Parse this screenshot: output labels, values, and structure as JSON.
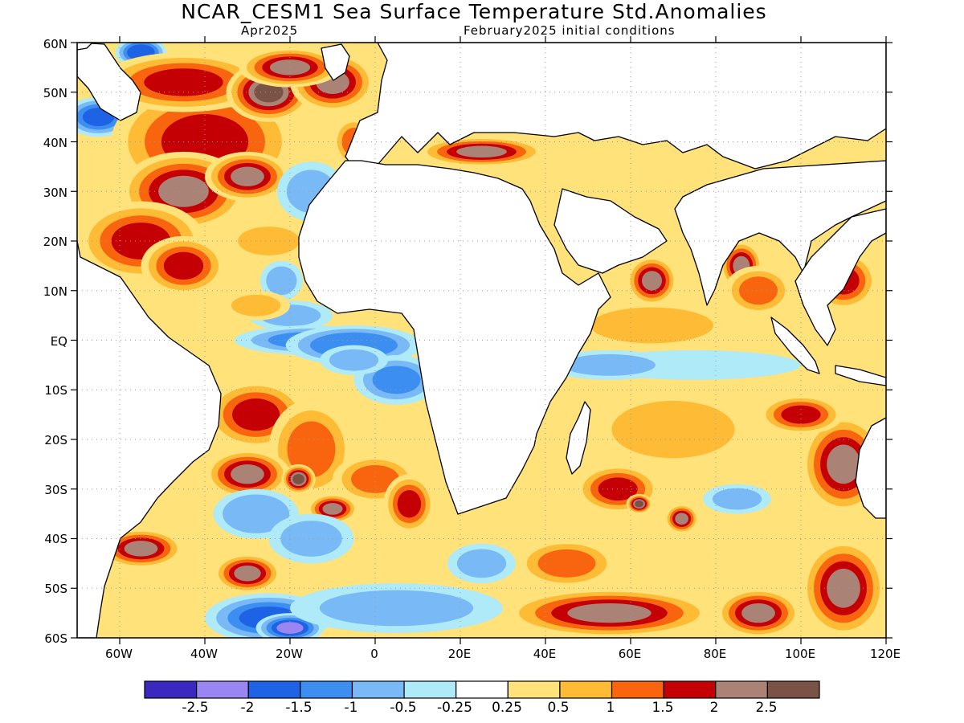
{
  "title": "NCAR_CESM1 Sea Surface Temperature Std.Anomalies",
  "valid_month": "Apr2025",
  "initial_conditions": "February2025 initial conditions",
  "map": {
    "lon_range": [
      -70,
      120
    ],
    "lat_range": [
      -60,
      60
    ],
    "lat_labels": [
      "60N",
      "50N",
      "40N",
      "30N",
      "20N",
      "10N",
      "EQ",
      "10S",
      "20S",
      "30S",
      "40S",
      "50S",
      "60S"
    ],
    "lon_labels": [
      "60W",
      "40W",
      "20W",
      "0",
      "20E",
      "40E",
      "60E",
      "80E",
      "100E",
      "120E"
    ],
    "gridlines": "dotted",
    "land_color": "#ffffff",
    "coastline_color": "#000000"
  },
  "colorbar": {
    "colors": [
      "#3b28be",
      "#9a86f2",
      "#1e62e6",
      "#3c8ff0",
      "#78b9f6",
      "#aeeaf7",
      "#ffffff",
      "#ffe27a",
      "#fdbb36",
      "#f9640f",
      "#c40005",
      "#aa8276",
      "#7a5246"
    ],
    "labels": [
      "-2.5",
      "-2",
      "-1.5",
      "-1",
      "-0.5",
      "-0.25",
      "0.25",
      "0.5",
      "1",
      "1.5",
      "2",
      "2.5"
    ]
  },
  "anomaly_features": [
    {
      "lon": -65,
      "lat": 45,
      "rx": 8,
      "ry": 4,
      "v": -1.8
    },
    {
      "lon": -55,
      "lat": 58,
      "rx": 6,
      "ry": 3,
      "v": -2.0
    },
    {
      "lon": -40,
      "lat": 40,
      "rx": 22,
      "ry": 12,
      "v": 1.7
    },
    {
      "lon": -45,
      "lat": 30,
      "rx": 15,
      "ry": 8,
      "v": 2.0
    },
    {
      "lon": -30,
      "lat": 33,
      "rx": 10,
      "ry": 5,
      "v": 2.3
    },
    {
      "lon": -45,
      "lat": 52,
      "rx": 20,
      "ry": 6,
      "v": 1.8
    },
    {
      "lon": -25,
      "lat": 50,
      "rx": 10,
      "ry": 6,
      "v": 2.5
    },
    {
      "lon": -10,
      "lat": 52,
      "rx": 10,
      "ry": 6,
      "v": 2.2
    },
    {
      "lon": -20,
      "lat": 55,
      "rx": 12,
      "ry": 4,
      "v": 2.0
    },
    {
      "lon": -55,
      "lat": 20,
      "rx": 15,
      "ry": 8,
      "v": 1.8
    },
    {
      "lon": -45,
      "lat": 15,
      "rx": 10,
      "ry": 6,
      "v": 1.6
    },
    {
      "lon": -25,
      "lat": 20,
      "rx": 10,
      "ry": 4,
      "v": 0.6
    },
    {
      "lon": -15,
      "lat": 30,
      "rx": 8,
      "ry": 6,
      "v": -0.6
    },
    {
      "lon": -22,
      "lat": 12,
      "rx": 5,
      "ry": 4,
      "v": -0.8
    },
    {
      "lon": -20,
      "lat": 5,
      "rx": 10,
      "ry": 3,
      "v": -0.8
    },
    {
      "lon": -15,
      "lat": 0,
      "rx": 18,
      "ry": 3,
      "v": -1.4
    },
    {
      "lon": -5,
      "lat": -1,
      "rx": 16,
      "ry": 4,
      "v": -1.5
    },
    {
      "lon": 5,
      "lat": -8,
      "rx": 10,
      "ry": 5,
      "v": -1.2
    },
    {
      "lon": -5,
      "lat": -4,
      "rx": 8,
      "ry": 3,
      "v": -0.8
    },
    {
      "lon": -28,
      "lat": 7,
      "rx": 8,
      "ry": 3,
      "v": 0.8
    },
    {
      "lon": -35,
      "lat": -5,
      "rx": 6,
      "ry": 4,
      "v": 0.3
    },
    {
      "lon": -28,
      "lat": -15,
      "rx": 12,
      "ry": 7,
      "v": 1.5
    },
    {
      "lon": -15,
      "lat": -22,
      "rx": 10,
      "ry": 10,
      "v": 1.3
    },
    {
      "lon": -30,
      "lat": -27,
      "rx": 10,
      "ry": 5,
      "v": 2.3
    },
    {
      "lon": -18,
      "lat": -28,
      "rx": 4,
      "ry": 3,
      "v": 2.6
    },
    {
      "lon": -10,
      "lat": -34,
      "rx": 6,
      "ry": 3,
      "v": 2.1
    },
    {
      "lon": 0,
      "lat": -28,
      "rx": 10,
      "ry": 5,
      "v": 1.0
    },
    {
      "lon": 8,
      "lat": -33,
      "rx": 6,
      "ry": 6,
      "v": 1.5
    },
    {
      "lon": -28,
      "lat": -35,
      "rx": 10,
      "ry": 5,
      "v": -1.0
    },
    {
      "lon": -15,
      "lat": -40,
      "rx": 10,
      "ry": 5,
      "v": -0.6
    },
    {
      "lon": -30,
      "lat": -47,
      "rx": 8,
      "ry": 4,
      "v": 2.3
    },
    {
      "lon": -55,
      "lat": -42,
      "rx": 10,
      "ry": 4,
      "v": 2.0
    },
    {
      "lon": -25,
      "lat": -56,
      "rx": 15,
      "ry": 5,
      "v": -1.6
    },
    {
      "lon": -20,
      "lat": -58,
      "rx": 8,
      "ry": 3,
      "v": -2.3
    },
    {
      "lon": 5,
      "lat": -54,
      "rx": 25,
      "ry": 5,
      "v": -0.6
    },
    {
      "lon": 25,
      "lat": -45,
      "rx": 8,
      "ry": 4,
      "v": -0.8
    },
    {
      "lon": 45,
      "lat": -45,
      "rx": 12,
      "ry": 5,
      "v": 1.0
    },
    {
      "lon": 57,
      "lat": -30,
      "rx": 10,
      "ry": 5,
      "v": 1.8
    },
    {
      "lon": 62,
      "lat": -33,
      "rx": 3,
      "ry": 2,
      "v": 2.6
    },
    {
      "lon": 72,
      "lat": -36,
      "rx": 4,
      "ry": 3,
      "v": 2.3
    },
    {
      "lon": 85,
      "lat": -32,
      "rx": 8,
      "ry": 3,
      "v": -0.6
    },
    {
      "lon": 55,
      "lat": -55,
      "rx": 25,
      "ry": 5,
      "v": 2.3
    },
    {
      "lon": 90,
      "lat": -55,
      "rx": 10,
      "ry": 5,
      "v": 2.0
    },
    {
      "lon": 110,
      "lat": -25,
      "rx": 10,
      "ry": 10,
      "v": 2.2
    },
    {
      "lon": 110,
      "lat": -50,
      "rx": 10,
      "ry": 10,
      "v": 2.0
    },
    {
      "lon": 100,
      "lat": -15,
      "rx": 10,
      "ry": 4,
      "v": 1.6
    },
    {
      "lon": 70,
      "lat": -18,
      "rx": 20,
      "ry": 8,
      "v": 0.9
    },
    {
      "lon": 75,
      "lat": -5,
      "rx": 25,
      "ry": 3,
      "v": -0.4
    },
    {
      "lon": 55,
      "lat": -5,
      "rx": 15,
      "ry": 3,
      "v": -0.6
    },
    {
      "lon": 65,
      "lat": 3,
      "rx": 20,
      "ry": 5,
      "v": 0.9
    },
    {
      "lon": 65,
      "lat": 12,
      "rx": 6,
      "ry": 5,
      "v": 2.2
    },
    {
      "lon": 86,
      "lat": 15,
      "rx": 5,
      "ry": 5,
      "v": 2.3
    },
    {
      "lon": 90,
      "lat": 10,
      "rx": 8,
      "ry": 5,
      "v": 1.4
    },
    {
      "lon": 110,
      "lat": 12,
      "rx": 8,
      "ry": 6,
      "v": 1.6
    },
    {
      "lon": -5,
      "lat": 40,
      "rx": 5,
      "ry": 5,
      "v": 1.2
    },
    {
      "lon": 25,
      "lat": 38,
      "rx": 15,
      "ry": 3,
      "v": 2.2
    }
  ]
}
